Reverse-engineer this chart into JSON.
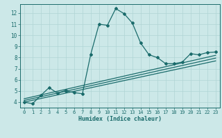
{
  "xlabel": "Humidex (Indice chaleur)",
  "bg_color": "#cce8e8",
  "grid_color": "#b0d4d4",
  "line_color": "#1a6b6b",
  "xlim": [
    -0.5,
    23.5
  ],
  "ylim": [
    3.5,
    12.8
  ],
  "xticks": [
    0,
    1,
    2,
    3,
    4,
    5,
    6,
    7,
    8,
    9,
    10,
    11,
    12,
    13,
    14,
    15,
    16,
    17,
    18,
    19,
    20,
    21,
    22,
    23
  ],
  "yticks": [
    4,
    5,
    6,
    7,
    8,
    9,
    10,
    11,
    12
  ],
  "series": [
    [
      0,
      4.0
    ],
    [
      1,
      3.85
    ],
    [
      2,
      4.6
    ],
    [
      3,
      5.3
    ],
    [
      4,
      4.8
    ],
    [
      5,
      5.05
    ],
    [
      5,
      5.0
    ],
    [
      6,
      4.85
    ],
    [
      7,
      4.75
    ],
    [
      8,
      8.3
    ],
    [
      9,
      11.0
    ],
    [
      10,
      10.9
    ],
    [
      11,
      12.4
    ],
    [
      12,
      11.95
    ],
    [
      13,
      11.1
    ],
    [
      14,
      9.3
    ],
    [
      15,
      8.25
    ],
    [
      16,
      8.0
    ],
    [
      17,
      7.45
    ],
    [
      18,
      7.45
    ],
    [
      19,
      7.6
    ],
    [
      20,
      8.35
    ],
    [
      21,
      8.25
    ],
    [
      22,
      8.45
    ],
    [
      23,
      8.5
    ]
  ],
  "linear_series": [
    [
      [
        0,
        4.0
      ],
      [
        23,
        7.7
      ]
    ],
    [
      [
        0,
        4.15
      ],
      [
        23,
        7.95
      ]
    ],
    [
      [
        0,
        4.3
      ],
      [
        23,
        8.2
      ]
    ]
  ],
  "marker_size": 2.0,
  "line_width": 0.9,
  "tick_fontsize_x": 5.0,
  "tick_fontsize_y": 5.5,
  "xlabel_fontsize": 6.0
}
